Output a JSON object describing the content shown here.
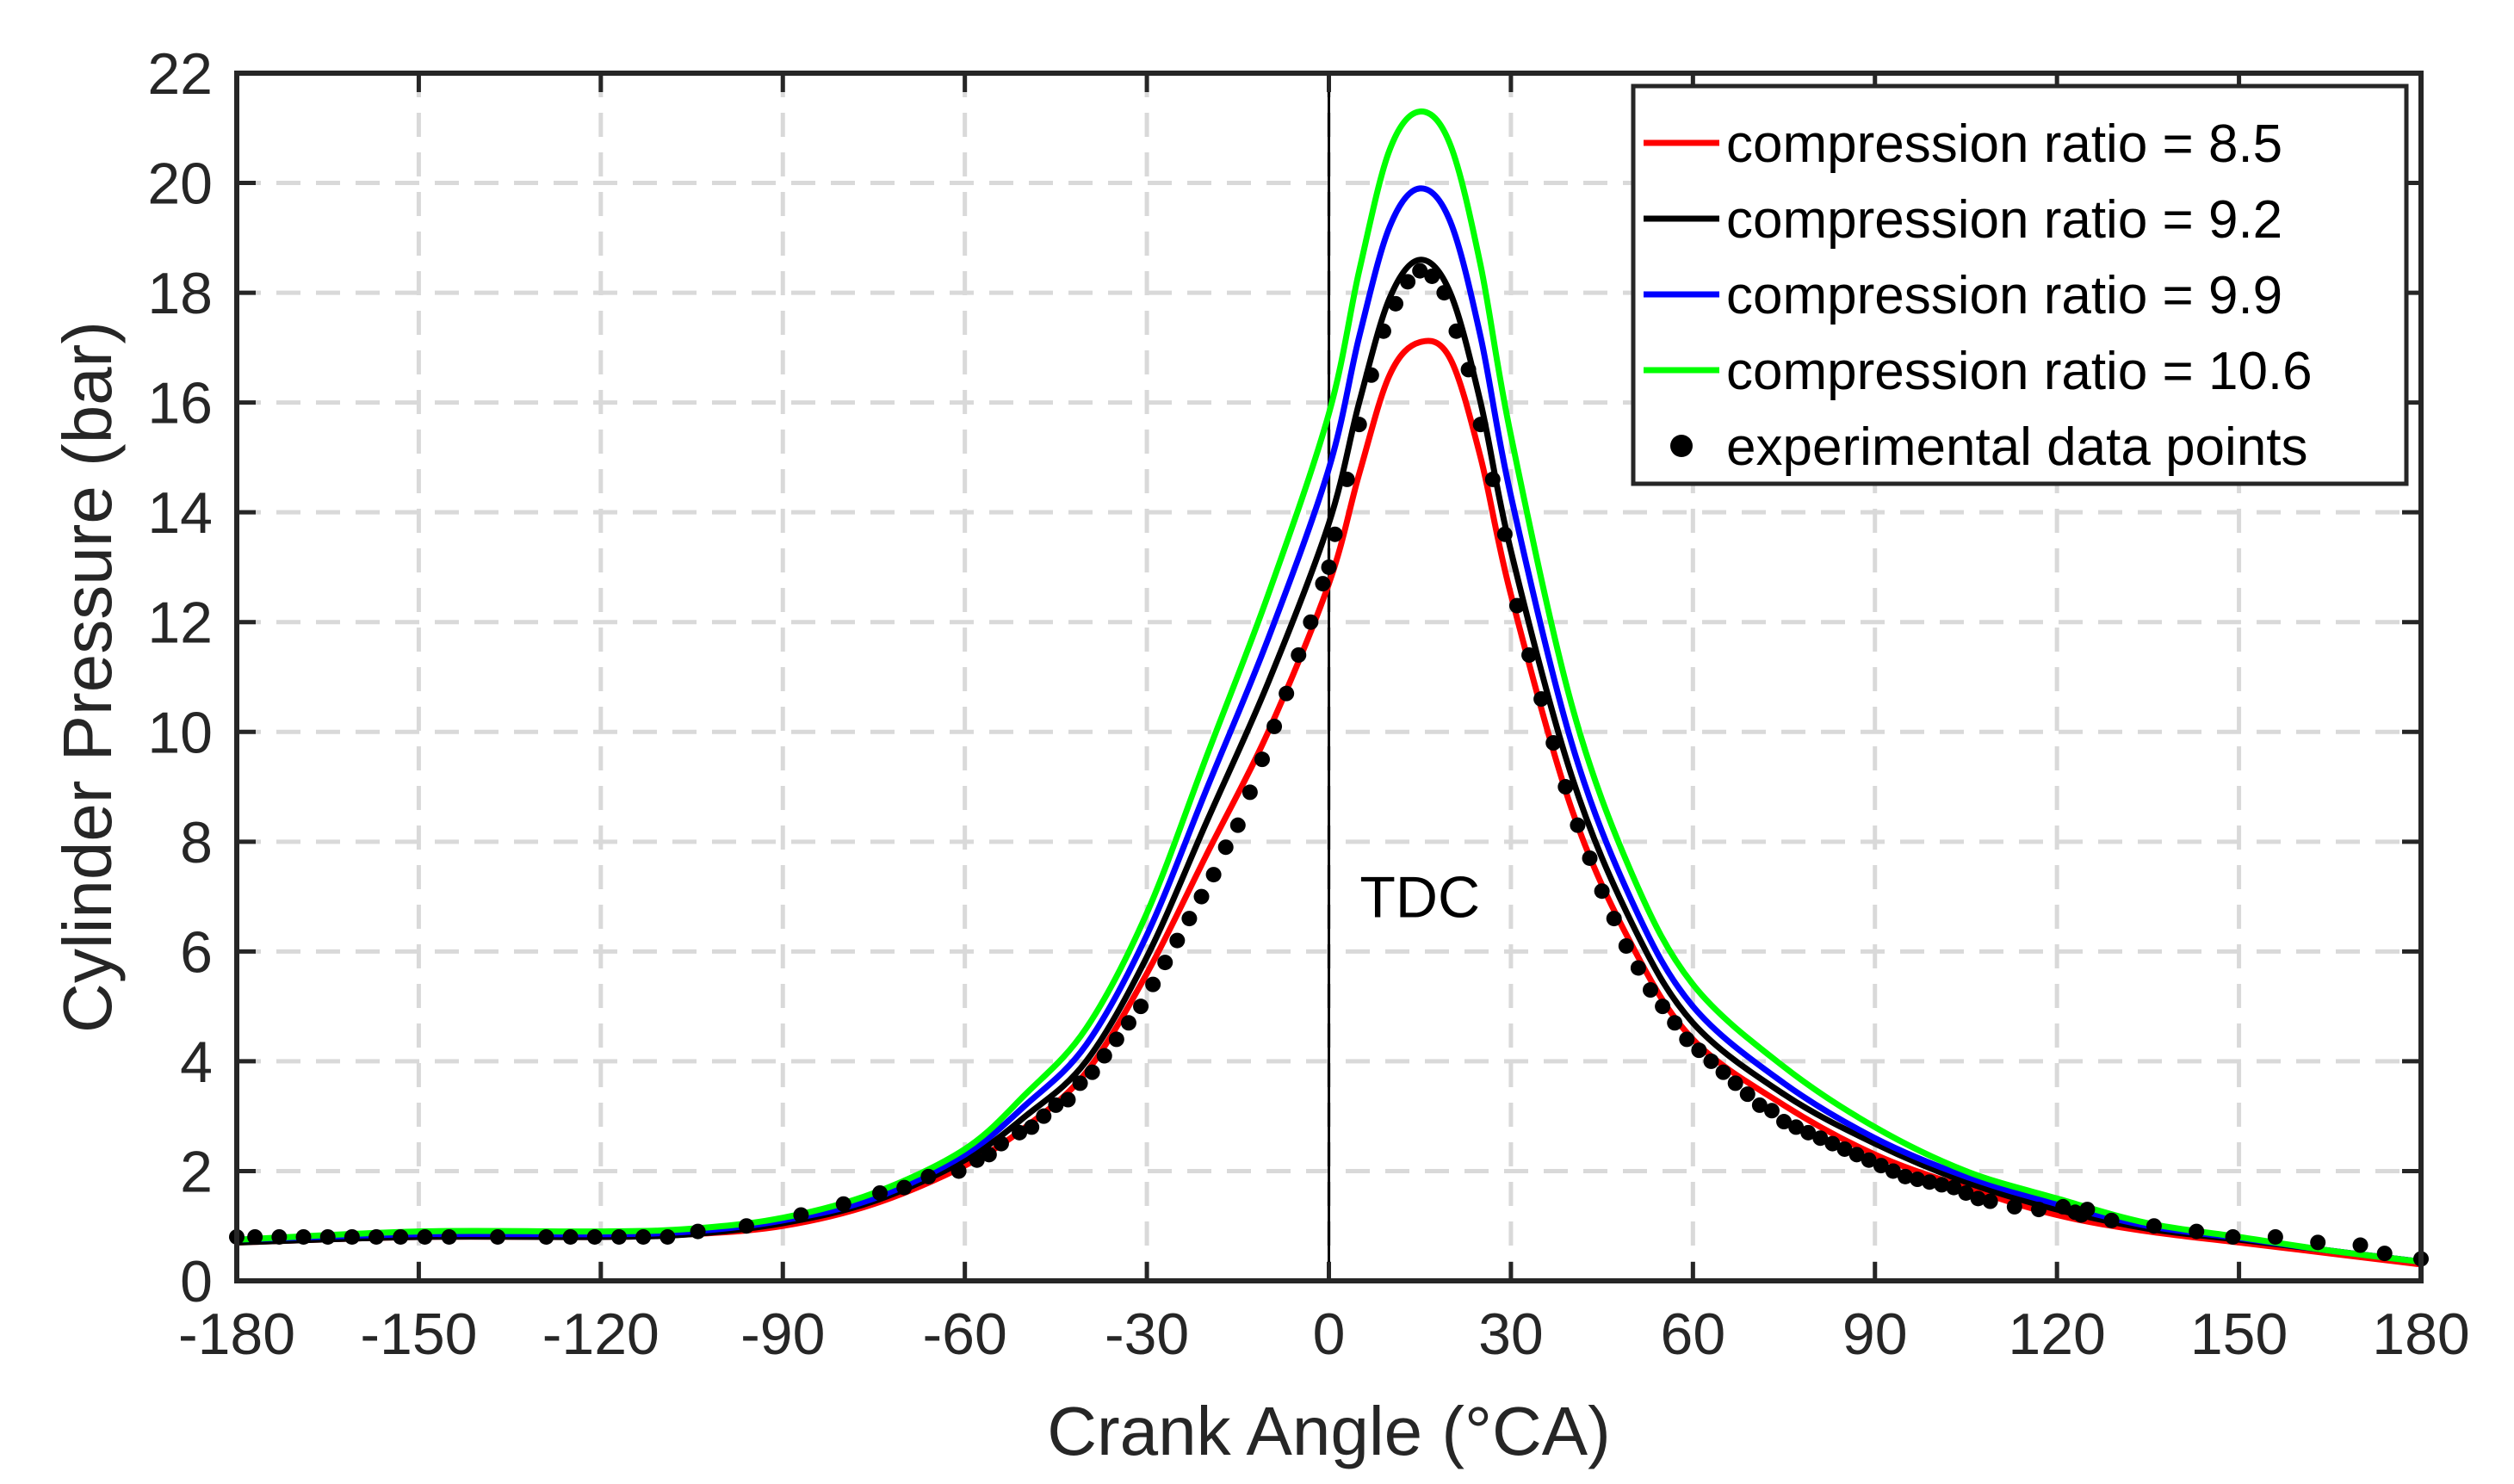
{
  "chart_data": {
    "type": "line",
    "title": "",
    "xlabel": "Crank Angle (°CA)",
    "ylabel": "Cylinder Pressure (bar)",
    "xlim": [
      -180,
      180
    ],
    "ylim": [
      0,
      22
    ],
    "xticks": [
      -180,
      -150,
      -120,
      -90,
      -60,
      -30,
      0,
      30,
      60,
      90,
      120,
      150,
      180
    ],
    "yticks": [
      0,
      2,
      4,
      6,
      8,
      10,
      12,
      14,
      16,
      18,
      20,
      22
    ],
    "grid": true,
    "legend_position": "top-right",
    "annotations": [
      {
        "text": "TDC",
        "x": 15,
        "y": 7
      }
    ],
    "vertical_line": {
      "x": 0,
      "label": "TDC"
    },
    "series": [
      {
        "name": "compression ratio = 8.5",
        "color": "#ff0000",
        "style": "line",
        "x": [
          -180,
          -150,
          -120,
          -105,
          -90,
          -75,
          -60,
          -50,
          -40,
          -30,
          -20,
          -10,
          0,
          5,
          10,
          15,
          20,
          25,
          30,
          40,
          50,
          60,
          75,
          90,
          105,
          120,
          135,
          150,
          165,
          180
        ],
        "y": [
          0.7,
          0.8,
          0.8,
          0.85,
          1.0,
          1.4,
          2.1,
          2.8,
          3.8,
          5.6,
          7.8,
          10.0,
          12.7,
          14.7,
          16.5,
          17.1,
          16.8,
          15.0,
          12.5,
          8.6,
          6.1,
          4.4,
          3.2,
          2.3,
          1.7,
          1.2,
          0.9,
          0.7,
          0.5,
          0.3
        ]
      },
      {
        "name": "compression ratio = 9.2",
        "color": "#000000",
        "style": "line",
        "x": [
          -180,
          -150,
          -120,
          -105,
          -90,
          -75,
          -60,
          -50,
          -40,
          -30,
          -20,
          -10,
          0,
          5,
          10,
          15,
          20,
          25,
          30,
          40,
          50,
          60,
          75,
          90,
          105,
          120,
          135,
          150,
          165,
          180
        ],
        "y": [
          0.7,
          0.8,
          0.8,
          0.85,
          1.05,
          1.45,
          2.2,
          3.0,
          4.0,
          5.9,
          8.4,
          10.9,
          13.8,
          16.0,
          17.9,
          18.6,
          18.0,
          16.0,
          13.3,
          9.2,
          6.5,
          4.7,
          3.4,
          2.5,
          1.8,
          1.3,
          0.95,
          0.75,
          0.55,
          0.35
        ]
      },
      {
        "name": "compression ratio = 9.9",
        "color": "#0000ff",
        "style": "line",
        "x": [
          -180,
          -150,
          -120,
          -105,
          -90,
          -75,
          -60,
          -50,
          -40,
          -30,
          -20,
          -10,
          0,
          5,
          10,
          15,
          20,
          25,
          30,
          40,
          50,
          60,
          75,
          90,
          105,
          120,
          135,
          150,
          165,
          180
        ],
        "y": [
          0.75,
          0.85,
          0.85,
          0.9,
          1.1,
          1.5,
          2.3,
          3.2,
          4.3,
          6.3,
          9.0,
          11.7,
          14.8,
          17.2,
          19.2,
          19.9,
          19.3,
          17.2,
          14.3,
          9.8,
          6.9,
          5.0,
          3.6,
          2.6,
          1.9,
          1.4,
          1.0,
          0.78,
          0.55,
          0.35
        ]
      },
      {
        "name": "compression ratio = 10.6",
        "color": "#00ff00",
        "style": "line",
        "x": [
          -180,
          -150,
          -120,
          -105,
          -90,
          -75,
          -60,
          -50,
          -40,
          -30,
          -20,
          -10,
          0,
          5,
          10,
          15,
          20,
          25,
          30,
          40,
          50,
          60,
          75,
          90,
          105,
          120,
          135,
          150,
          165,
          180
        ],
        "y": [
          0.75,
          0.9,
          0.9,
          0.95,
          1.15,
          1.6,
          2.4,
          3.4,
          4.6,
          6.7,
          9.6,
          12.5,
          15.8,
          18.4,
          20.6,
          21.3,
          20.7,
          18.5,
          15.4,
          10.5,
          7.4,
          5.4,
          3.9,
          2.8,
          2.0,
          1.5,
          1.05,
          0.8,
          0.55,
          0.35
        ]
      },
      {
        "name": "experimental data points",
        "color": "#000000",
        "style": "scatter",
        "x": [
          -180,
          -177,
          -173,
          -169,
          -165,
          -161,
          -157,
          -153,
          -149,
          -145,
          -137,
          -129,
          -125,
          -121,
          -117,
          -113,
          -109,
          -104,
          -96,
          -87,
          -80,
          -74,
          -70,
          -66,
          -61,
          -58,
          -56,
          -54,
          -51,
          -49,
          -47,
          -45,
          -43,
          -41,
          -39,
          -37,
          -35,
          -33,
          -31,
          -29,
          -27,
          -25,
          -23,
          -21,
          -19,
          -17,
          -15,
          -13,
          -11,
          -9,
          -7,
          -5,
          -3,
          -1,
          0,
          1,
          3,
          5,
          7,
          9,
          11,
          13,
          15,
          17,
          19,
          21,
          23,
          25,
          27,
          29,
          31,
          33,
          35,
          37,
          39,
          41,
          43,
          45,
          47,
          49,
          51,
          53,
          55,
          57,
          59,
          61,
          63,
          65,
          67,
          69,
          71,
          73,
          75,
          77,
          79,
          81,
          83,
          85,
          87,
          89,
          91,
          93,
          95,
          97,
          99,
          101,
          103,
          105,
          107,
          109,
          113,
          117,
          121,
          123,
          124,
          125,
          129,
          136,
          143,
          149,
          156,
          163,
          170,
          174,
          180
        ],
        "y": [
          0.8,
          0.8,
          0.8,
          0.8,
          0.8,
          0.8,
          0.8,
          0.8,
          0.8,
          0.8,
          0.8,
          0.8,
          0.8,
          0.8,
          0.8,
          0.8,
          0.8,
          0.9,
          1.0,
          1.2,
          1.4,
          1.6,
          1.7,
          1.9,
          2.0,
          2.2,
          2.3,
          2.5,
          2.7,
          2.8,
          3.0,
          3.2,
          3.3,
          3.6,
          3.8,
          4.1,
          4.4,
          4.7,
          5.0,
          5.4,
          5.8,
          6.2,
          6.6,
          7.0,
          7.4,
          7.9,
          8.3,
          8.9,
          9.5,
          10.1,
          10.7,
          11.4,
          12.0,
          12.7,
          13.0,
          13.6,
          14.6,
          15.6,
          16.5,
          17.3,
          17.8,
          18.2,
          18.4,
          18.3,
          18.0,
          17.3,
          16.6,
          15.6,
          14.6,
          13.6,
          12.3,
          11.4,
          10.6,
          9.8,
          9.0,
          8.3,
          7.7,
          7.1,
          6.6,
          6.1,
          5.7,
          5.3,
          5.0,
          4.7,
          4.4,
          4.2,
          4.0,
          3.8,
          3.6,
          3.4,
          3.2,
          3.1,
          2.9,
          2.8,
          2.7,
          2.6,
          2.5,
          2.4,
          2.3,
          2.2,
          2.1,
          2.0,
          1.9,
          1.85,
          1.8,
          1.75,
          1.7,
          1.6,
          1.5,
          1.45,
          1.35,
          1.3,
          1.35,
          1.25,
          1.2,
          1.3,
          1.1,
          1.0,
          0.9,
          0.8,
          0.8,
          0.7,
          0.65,
          0.5,
          0.4
        ]
      }
    ]
  }
}
